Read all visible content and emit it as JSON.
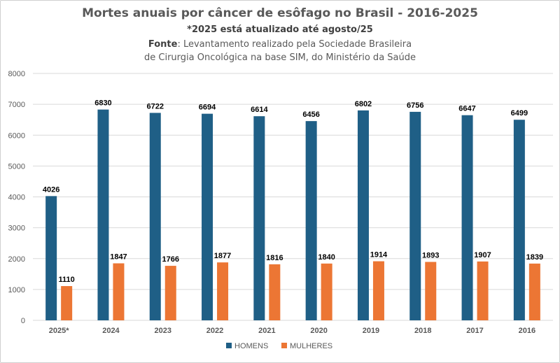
{
  "chart_data": {
    "type": "bar",
    "title": "Mortes anuais por câncer de esôfago no Brasil - 2016-2025",
    "subtitle": "*2025 está atualizado até agosto/25",
    "source_label": "Fonte",
    "source_line1": ": Levantamento realizado pela Sociedade Brasileira",
    "source_line2": "de Cirurgia Oncológica na base SIM, do Ministério da Saúde",
    "categories": [
      "2025*",
      "2024",
      "2023",
      "2022",
      "2021",
      "2020",
      "2019",
      "2018",
      "2017",
      "2016"
    ],
    "series": [
      {
        "name": "HOMENS",
        "color": "#1f5f86",
        "values": [
          4026,
          6830,
          6722,
          6694,
          6614,
          6456,
          6802,
          6756,
          6647,
          6499
        ]
      },
      {
        "name": "MULHERES",
        "color": "#ec7634",
        "values": [
          1110,
          1847,
          1766,
          1877,
          1816,
          1840,
          1914,
          1893,
          1907,
          1839
        ]
      }
    ],
    "ylim": [
      0,
      8000
    ],
    "yticks": [
      0,
      1000,
      2000,
      3000,
      4000,
      5000,
      6000,
      7000,
      8000
    ],
    "grid": true,
    "legend_position": "bottom"
  }
}
